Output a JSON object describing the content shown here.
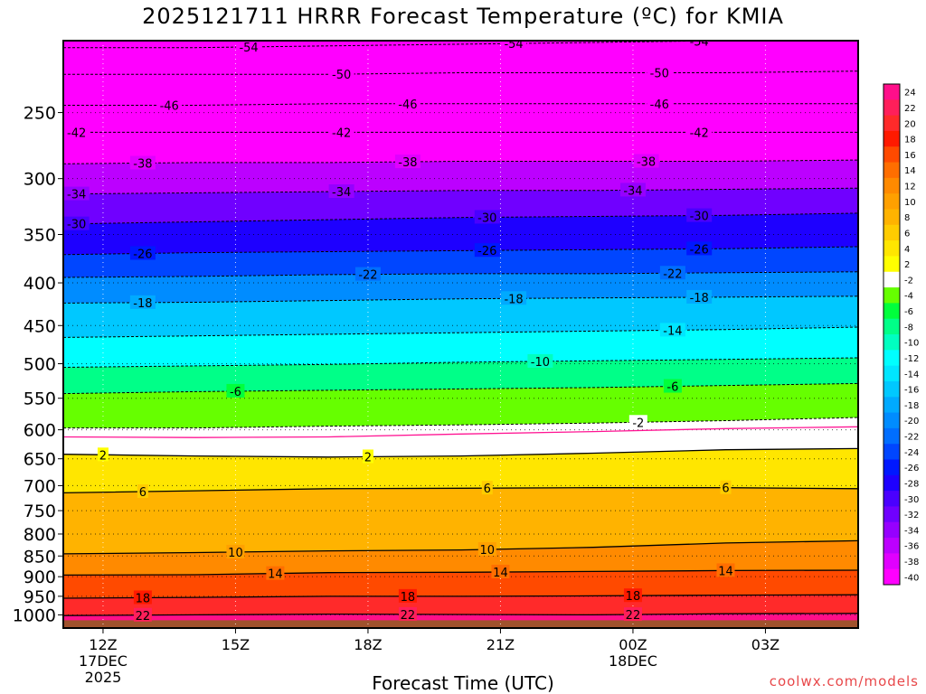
{
  "title": "2025121711 HRRR Forecast Temperature (ºC) for KMIA",
  "xlabel": "Forecast Time (UTC)",
  "credit": "coolwx.com/models",
  "chart_data": {
    "type": "heatmap",
    "y_axis": {
      "scale": "log-pressure",
      "range_hpa": [
        1037,
        205
      ],
      "tick_labels": [
        "250",
        "300",
        "350",
        "400",
        "450",
        "500",
        "550",
        "600",
        "650",
        "700",
        "750",
        "800",
        "850",
        "900",
        "950",
        "1000"
      ],
      "tick_values": [
        250,
        300,
        350,
        400,
        450,
        500,
        550,
        600,
        650,
        700,
        750,
        800,
        850,
        900,
        950,
        1000
      ]
    },
    "x_axis": {
      "range_hours": [
        -1.5,
        28.5
      ],
      "ticks": [
        {
          "hour": 0,
          "lines": [
            "12Z",
            "17DEC",
            "2025"
          ]
        },
        {
          "hour": 5,
          "lines": [
            "15Z"
          ]
        },
        {
          "hour": 10,
          "lines": [
            "18Z"
          ]
        },
        {
          "hour": 15,
          "lines": [
            "21Z"
          ]
        },
        {
          "hour": 20,
          "lines": [
            "00Z",
            "18DEC"
          ]
        },
        {
          "hour": 25,
          "lines": [
            "03Z"
          ]
        }
      ]
    },
    "colorbar": {
      "labels": [
        "24",
        "22",
        "20",
        "18",
        "16",
        "14",
        "12",
        "10",
        "8",
        "6",
        "4",
        "2",
        "-2",
        "-4",
        "-6",
        "-8",
        "-10",
        "-12",
        "-14",
        "-16",
        "-18",
        "-20",
        "-22",
        "-24",
        "-26",
        "-28",
        "-30",
        "-32",
        "-34",
        "-36",
        "-38",
        "-40"
      ],
      "colors": [
        "#ff0f8a",
        "#ff1f5a",
        "#ff2a2a",
        "#ff1a00",
        "#ff4a00",
        "#ff6e00",
        "#ff8a00",
        "#ffa000",
        "#ffb300",
        "#ffcc00",
        "#ffe600",
        "#ffff00",
        "#ffffff",
        "#66ff00",
        "#00ff3c",
        "#00ff88",
        "#00ffc0",
        "#00ffff",
        "#00e6ff",
        "#00c8ff",
        "#00aaff",
        "#008cff",
        "#006eff",
        "#0046ff",
        "#0018ff",
        "#1e00ff",
        "#4a00ff",
        "#7000ff",
        "#9600ff",
        "#bc00ff",
        "#e000ff",
        "#ff00ff"
      ]
    },
    "isotherms": [
      {
        "temp": -54,
        "p": [
          209,
          209,
          208,
          207,
          206,
          205,
          205
        ],
        "labels": [
          "-54",
          "-54",
          "-54"
        ],
        "label_hours": [
          5.5,
          15.5,
          22.5
        ]
      },
      {
        "temp": -50,
        "p": [
          225,
          225,
          225,
          224,
          224,
          224,
          223
        ],
        "labels": [
          "-50",
          "-50"
        ],
        "label_hours": [
          9,
          21
        ]
      },
      {
        "temp": -46,
        "p": [
          245,
          245,
          244,
          244,
          244,
          244,
          244
        ],
        "labels": [
          "-46",
          "-46",
          "-46"
        ],
        "label_hours": [
          2.5,
          11.5,
          21
        ]
      },
      {
        "temp": -42,
        "p": [
          264,
          264,
          264,
          264,
          264,
          264,
          264
        ],
        "labels": [
          "-42",
          "-42",
          "-42"
        ],
        "label_hours": [
          -1,
          9,
          22.5
        ]
      },
      {
        "temp": -38,
        "p": [
          288,
          287,
          287,
          286,
          286,
          286,
          285
        ],
        "labels": [
          "-38",
          "-38",
          "-38"
        ],
        "label_hours": [
          1.5,
          11.5,
          20.5
        ]
      },
      {
        "temp": -34,
        "p": [
          313,
          312,
          311,
          310,
          310,
          309,
          308
        ],
        "labels": [
          "-34",
          "-34",
          "-34"
        ],
        "label_hours": [
          -1,
          9,
          20
        ]
      },
      {
        "temp": -30,
        "p": [
          340,
          338,
          336,
          334,
          333,
          332,
          330
        ],
        "labels": [
          "-30",
          "-30",
          "-30"
        ],
        "label_hours": [
          -1,
          14.5,
          22.5
        ]
      },
      {
        "temp": -26,
        "p": [
          370,
          368,
          367,
          366,
          365,
          364,
          362
        ],
        "labels": [
          "-26",
          "-26",
          "-26"
        ],
        "label_hours": [
          1.5,
          14.5,
          22.5
        ]
      },
      {
        "temp": -22,
        "p": [
          394,
          393,
          391,
          390,
          390,
          389,
          388
        ],
        "labels": [
          "-22",
          "-22"
        ],
        "label_hours": [
          10,
          21.5
        ]
      },
      {
        "temp": -18,
        "p": [
          423,
          422,
          420,
          418,
          417,
          416,
          415
        ],
        "labels": [
          "-18",
          "-18",
          "-18"
        ],
        "label_hours": [
          1.5,
          15.5,
          22.5
        ]
      },
      {
        "temp": -14,
        "p": [
          465,
          463,
          461,
          459,
          457,
          455,
          452
        ],
        "labels": [
          "-14"
        ],
        "label_hours": [
          21.5
        ]
      },
      {
        "temp": -10,
        "p": [
          505,
          503,
          501,
          498,
          496,
          494,
          492
        ],
        "labels": [
          "-10"
        ],
        "label_hours": [
          16.5
        ]
      },
      {
        "temp": -6,
        "p": [
          543,
          540,
          538,
          536,
          534,
          531,
          528
        ],
        "labels": [
          "-6",
          "-6"
        ],
        "label_hours": [
          5,
          21.5
        ]
      },
      {
        "temp": -2,
        "p": [
          597,
          597,
          594,
          592,
          589,
          585,
          580
        ],
        "labels": [
          "-2"
        ],
        "label_hours": [
          20.2
        ]
      }
    ],
    "isotherms_solid": [
      {
        "temp": 2,
        "p": [
          642,
          645,
          647,
          645,
          640,
          634,
          632
        ],
        "labels": [
          "2",
          "2"
        ],
        "label_hours": [
          0,
          10
        ]
      },
      {
        "temp": 6,
        "p": [
          714,
          710,
          706,
          705,
          704,
          704,
          706
        ],
        "labels": [
          "6",
          "6",
          "6"
        ],
        "label_hours": [
          1.5,
          14.5,
          23.5
        ]
      },
      {
        "temp": 10,
        "p": [
          845,
          842,
          838,
          836,
          830,
          820,
          815
        ],
        "labels": [
          "10",
          "10"
        ],
        "label_hours": [
          5,
          14.5
        ]
      },
      {
        "temp": 14,
        "p": [
          896,
          895,
          890,
          889,
          887,
          885,
          884
        ],
        "labels": [
          "14",
          "14",
          "14"
        ],
        "label_hours": [
          6.5,
          15,
          23.5
        ]
      },
      {
        "temp": 18,
        "p": [
          955,
          953,
          950,
          950,
          949,
          947,
          946
        ],
        "labels": [
          "18",
          "18",
          "18"
        ],
        "label_hours": [
          1.5,
          11.5,
          20
        ]
      },
      {
        "temp": 22,
        "p": [
          1002,
          1000,
          998,
          999,
          1000,
          997,
          996
        ],
        "labels": [
          "22",
          "22",
          "22"
        ],
        "label_hours": [
          1.5,
          11.5,
          20
        ]
      }
    ],
    "freezing_line": {
      "temp": 0,
      "p": [
        612,
        613,
        612,
        607,
        603,
        598,
        595
      ]
    }
  }
}
